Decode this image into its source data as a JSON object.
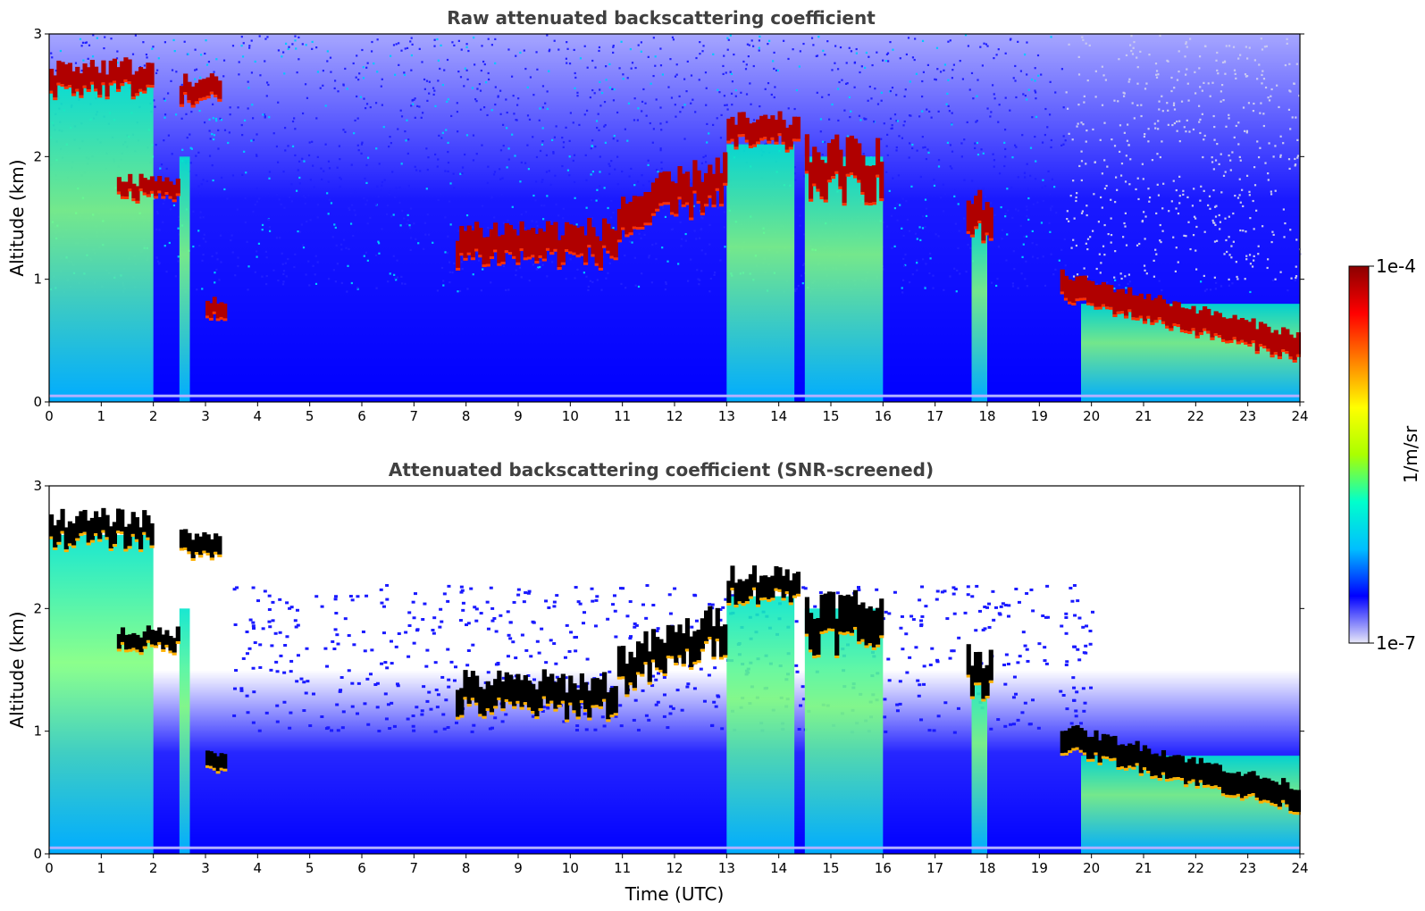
{
  "chart_data": [
    {
      "type": "heatmap",
      "title": "Raw attenuated backscattering coefficient",
      "ylabel": "Altitude (km)",
      "xlabel": "",
      "xlim": [
        0,
        24
      ],
      "ylim": [
        0,
        3
      ],
      "xticks": [
        "0",
        "1",
        "2",
        "3",
        "4",
        "5",
        "6",
        "7",
        "8",
        "9",
        "10",
        "11",
        "12",
        "13",
        "14",
        "15",
        "16",
        "17",
        "18",
        "19",
        "20",
        "21",
        "22",
        "23",
        "24"
      ],
      "yticks": [
        "0",
        "1",
        "2",
        "3"
      ],
      "screened": false,
      "cloud_layers": [
        {
          "t0": 0.0,
          "t1": 2.0,
          "z": 2.65,
          "dz": 0.18
        },
        {
          "t0": 1.3,
          "t1": 2.5,
          "z": 1.75,
          "dz": 0.12
        },
        {
          "t0": 2.5,
          "t1": 3.3,
          "z": 2.55,
          "dz": 0.15
        },
        {
          "t0": 3.0,
          "t1": 3.4,
          "z": 0.75,
          "dz": 0.12
        },
        {
          "t0": 7.8,
          "t1": 10.9,
          "z": 1.3,
          "dz": 0.22
        },
        {
          "t0": 10.9,
          "t1": 13.0,
          "z": 1.65,
          "dz": 0.25
        },
        {
          "t0": 13.0,
          "t1": 14.4,
          "z": 2.2,
          "dz": 0.18
        },
        {
          "t0": 14.5,
          "t1": 16.0,
          "z": 1.9,
          "dz": 0.3
        },
        {
          "t0": 17.6,
          "t1": 18.1,
          "z": 1.5,
          "dz": 0.25
        },
        {
          "t0": 19.4,
          "t1": 24.0,
          "z": 0.7,
          "dz": 0.18
        }
      ],
      "precip_shafts": [
        {
          "t0": 0.0,
          "t1": 2.0,
          "top": 2.6
        },
        {
          "t0": 2.5,
          "t1": 2.7,
          "top": 2.0
        },
        {
          "t0": 13.0,
          "t1": 14.3,
          "top": 2.1
        },
        {
          "t0": 14.5,
          "t1": 16.0,
          "top": 2.0
        },
        {
          "t0": 17.7,
          "t1": 18.0,
          "top": 1.5
        },
        {
          "t0": 19.8,
          "t1": 24.0,
          "top": 0.8
        }
      ]
    },
    {
      "type": "heatmap",
      "title": "Attenuated backscattering coefficient (SNR-screened)",
      "ylabel": "Altitude (km)",
      "xlabel": "Time (UTC)",
      "xlim": [
        0,
        24
      ],
      "ylim": [
        0,
        3
      ],
      "xticks": [
        "0",
        "1",
        "2",
        "3",
        "4",
        "5",
        "6",
        "7",
        "8",
        "9",
        "10",
        "11",
        "12",
        "13",
        "14",
        "15",
        "16",
        "17",
        "18",
        "19",
        "20",
        "21",
        "22",
        "23",
        "24"
      ],
      "yticks": [
        "0",
        "1",
        "2",
        "3"
      ],
      "screened": true
    }
  ],
  "colorbar": {
    "max_label": "1e-4",
    "min_label": "1e-7",
    "label": "1/m/sr",
    "colors": [
      "#e8e8f8",
      "#0000ff",
      "#00bfff",
      "#00ffcc",
      "#aaff00",
      "#ffff00",
      "#ff8000",
      "#ff0000",
      "#8b0000"
    ]
  }
}
